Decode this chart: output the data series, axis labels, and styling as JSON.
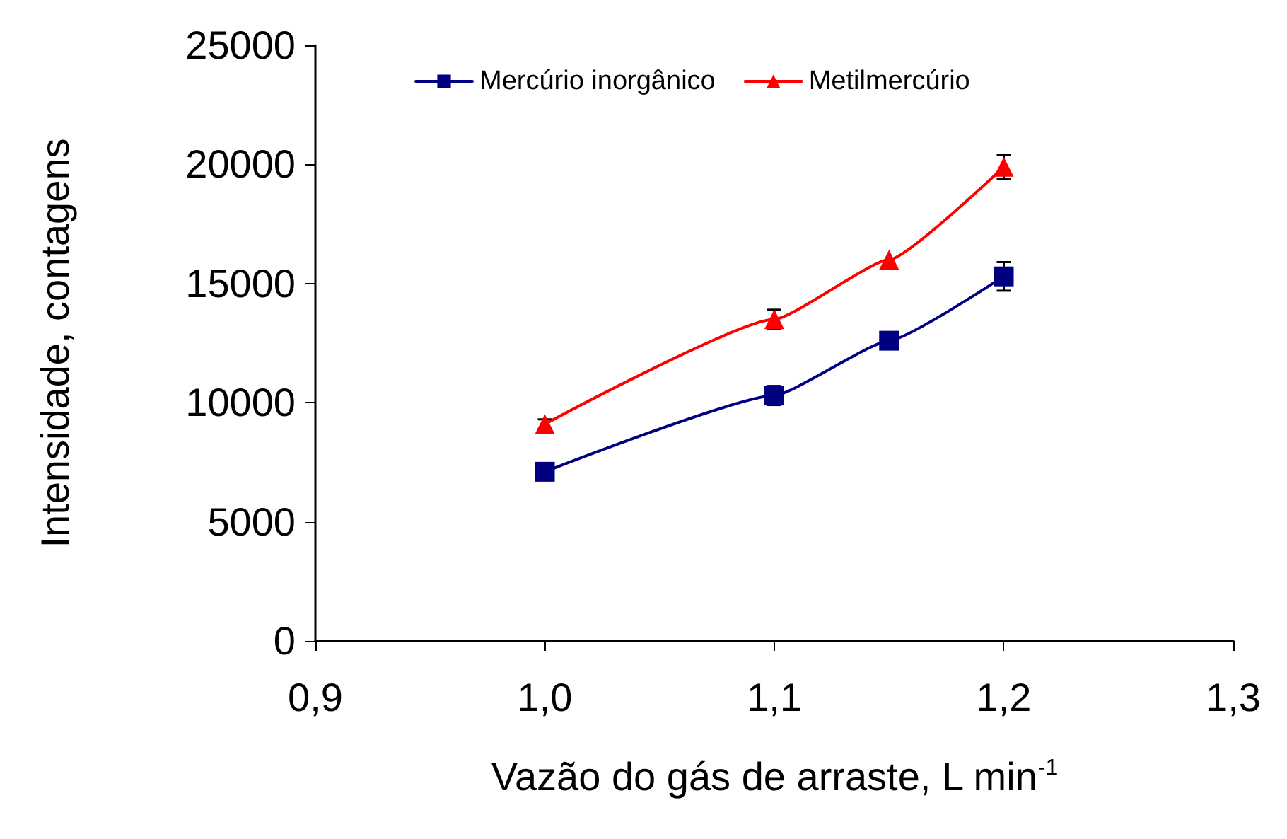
{
  "chart_data": {
    "type": "line",
    "xlabel": "Vazão do gás de arraste, L min$^{-1}$",
    "ylabel": "Intensidade, contagens",
    "x": [
      1.0,
      1.1,
      1.15,
      1.2
    ],
    "series": [
      {
        "name": "Mercúrio inorgânico",
        "color": "#000080",
        "marker": "square",
        "values": [
          7100,
          10300,
          12600,
          15300
        ],
        "errors": [
          null,
          400,
          null,
          600
        ]
      },
      {
        "name": "Metilmercúrio",
        "color": "#ff0000",
        "marker": "triangle",
        "values": [
          9100,
          13500,
          16000,
          19900
        ],
        "errors": [
          200,
          400,
          null,
          500
        ]
      }
    ],
    "xlim": [
      0.9,
      1.3
    ],
    "xticks": [
      {
        "value": 0.9,
        "label": "0,9"
      },
      {
        "value": 1.0,
        "label": "1,0"
      },
      {
        "value": 1.1,
        "label": "1,1"
      },
      {
        "value": 1.2,
        "label": "1,2"
      },
      {
        "value": 1.3,
        "label": "1,3"
      }
    ],
    "ylim": [
      0,
      25000
    ],
    "yticks": [
      0,
      5000,
      10000,
      15000,
      20000,
      25000
    ],
    "grid": false,
    "legend": "top",
    "line_style": "solid"
  }
}
